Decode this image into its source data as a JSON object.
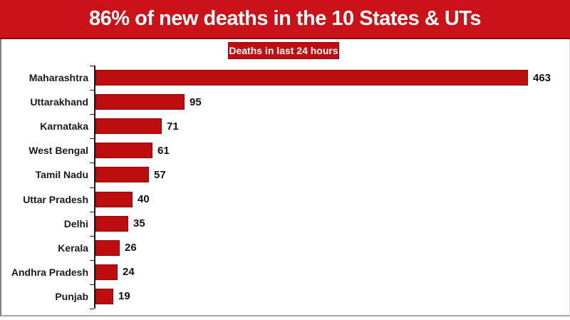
{
  "title": "86% of new deaths in the 10 States & UTs",
  "legend": "Deaths in last 24 hours",
  "colors": {
    "banner_bg": "#CB1219",
    "banner_border": "#7E0E12",
    "bar_fill": "#BE0D0E",
    "bar_border": "#8C0A0B",
    "legend_bg": "#C00D12",
    "axis": "#1a1a1a"
  },
  "chart_data": {
    "type": "bar",
    "orientation": "horizontal",
    "title": "86% of new deaths in the 10 States & UTs",
    "legend": "Deaths in last 24 hours",
    "categories": [
      "Maharashtra",
      "Uttarakhand",
      "Karnataka",
      "West Bengal",
      "Tamil Nadu",
      "Uttar Pradesh",
      "Delhi",
      "Kerala",
      "Andhra Pradesh",
      "Punjab"
    ],
    "values": [
      463,
      95,
      71,
      61,
      57,
      40,
      35,
      26,
      24,
      19
    ],
    "xlim": [
      0,
      463
    ],
    "grid": false,
    "legend_position": "top-center"
  }
}
